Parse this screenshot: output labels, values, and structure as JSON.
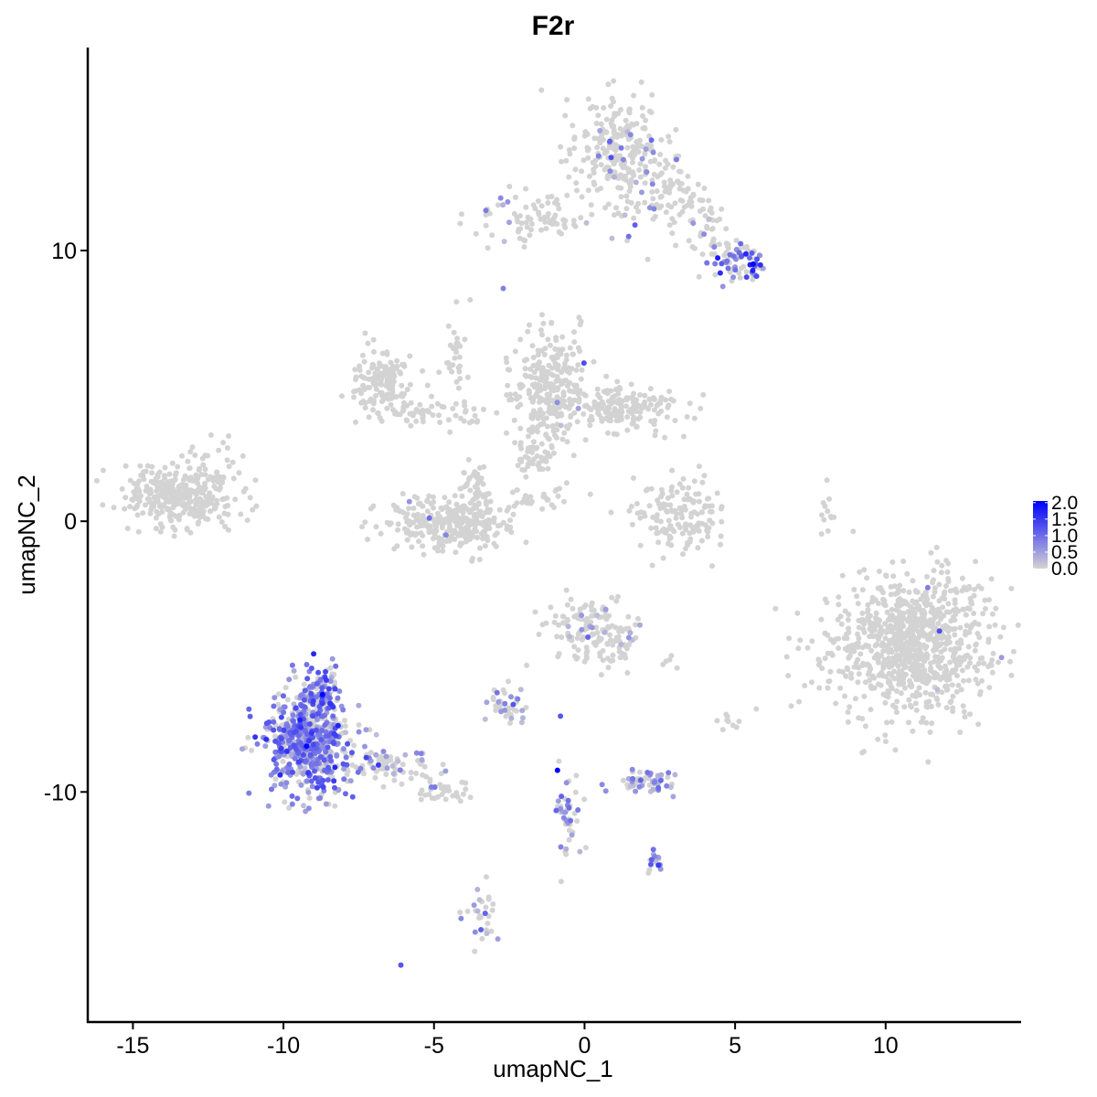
{
  "chart_data": {
    "type": "scatter",
    "title": "F2r",
    "xlabel": "umapNC_1",
    "ylabel": "umapNC_2",
    "xlim": [
      -16.5,
      14.5
    ],
    "ylim": [
      -18.5,
      17.5
    ],
    "x_ticks": [
      -15,
      -10,
      -5,
      0,
      5,
      10
    ],
    "x_tick_labels": [
      "-15",
      "-10",
      "-5",
      "0",
      "5",
      "10"
    ],
    "y_ticks": [
      -10,
      0,
      10
    ],
    "y_tick_labels": [
      "-10",
      "0",
      "10"
    ],
    "grid": false,
    "legend_position": "right",
    "color_scale": {
      "low": "#d3d3d3",
      "high": "#0000ff",
      "min": 0,
      "max": 2.05,
      "breaks": [
        2.0,
        1.5,
        1.0,
        0.5,
        0.0
      ],
      "break_labels": [
        "2.0",
        "1.5",
        "1.0",
        "0.5",
        "0.0"
      ]
    },
    "clusters": [
      {
        "cx": -13.4,
        "cy": 1.0,
        "sx": 0.9,
        "sy": 0.6,
        "n": 320,
        "expr_frac": 0.0,
        "expr_mean": 0.0
      },
      {
        "cx": -12.0,
        "cy": 1.8,
        "sx": 0.6,
        "sy": 0.5,
        "n": 25,
        "expr_frac": 0.0,
        "expr_mean": 0.0
      },
      {
        "cx": -6.8,
        "cy": 5.2,
        "sx": 0.5,
        "sy": 0.5,
        "n": 130,
        "expr_frac": 0.02,
        "expr_mean": 0.6
      },
      {
        "cx": -5.3,
        "cy": 4.0,
        "sx": 0.9,
        "sy": 0.3,
        "n": 70,
        "expr_frac": 0.02,
        "expr_mean": 0.5
      },
      {
        "cx": -4.3,
        "cy": 6.2,
        "sx": 0.2,
        "sy": 1.0,
        "n": 30,
        "expr_frac": 0.0,
        "expr_mean": 0.0
      },
      {
        "cx": -4.5,
        "cy": -0.1,
        "sx": 1.1,
        "sy": 0.5,
        "n": 300,
        "expr_frac": 0.01,
        "expr_mean": 0.5
      },
      {
        "cx": -3.6,
        "cy": 1.0,
        "sx": 0.35,
        "sy": 0.6,
        "n": 55,
        "expr_frac": 0.0,
        "expr_mean": 0.0
      },
      {
        "cx": -1.2,
        "cy": 5.0,
        "sx": 0.6,
        "sy": 1.0,
        "n": 260,
        "expr_frac": 0.02,
        "expr_mean": 0.5
      },
      {
        "cx": 1.2,
        "cy": 4.2,
        "sx": 1.0,
        "sy": 0.45,
        "n": 200,
        "expr_frac": 0.01,
        "expr_mean": 0.5
      },
      {
        "cx": -1.6,
        "cy": 2.5,
        "sx": 0.35,
        "sy": 0.6,
        "n": 50,
        "expr_frac": 0.0,
        "expr_mean": 0.0
      },
      {
        "cx": -1.8,
        "cy": 0.8,
        "sx": 0.7,
        "sy": 0.25,
        "n": 25,
        "expr_frac": 0.0,
        "expr_mean": 0.0
      },
      {
        "cx": 3.2,
        "cy": 0.2,
        "sx": 0.8,
        "sy": 0.7,
        "n": 150,
        "expr_frac": 0.0,
        "expr_mean": 0.0
      },
      {
        "cx": 8.1,
        "cy": 0.3,
        "sx": 0.15,
        "sy": 0.5,
        "n": 12,
        "expr_frac": 0.0,
        "expr_mean": 0.0
      },
      {
        "cx": 10.8,
        "cy": -4.6,
        "sx": 1.3,
        "sy": 1.3,
        "n": 900,
        "expr_frac": 0.005,
        "expr_mean": 0.5
      },
      {
        "cx": 1.2,
        "cy": 13.6,
        "sx": 0.8,
        "sy": 1.0,
        "n": 260,
        "expr_frac": 0.08,
        "expr_mean": 0.6
      },
      {
        "cx": 3.0,
        "cy": 11.8,
        "sx": 0.7,
        "sy": 0.8,
        "n": 80,
        "expr_frac": 0.05,
        "expr_mean": 0.5
      },
      {
        "cx": -1.8,
        "cy": 11.2,
        "sx": 1.0,
        "sy": 0.4,
        "n": 80,
        "expr_frac": 0.06,
        "expr_mean": 0.6
      },
      {
        "cx": 5.2,
        "cy": 9.6,
        "sx": 0.45,
        "sy": 0.35,
        "n": 80,
        "expr_frac": 0.45,
        "expr_mean": 1.0
      },
      {
        "cx": 4.3,
        "cy": 10.6,
        "sx": 0.4,
        "sy": 0.6,
        "n": 30,
        "expr_frac": 0.1,
        "expr_mean": 0.6
      },
      {
        "cx": -9.2,
        "cy": -8.2,
        "sx": 0.7,
        "sy": 0.9,
        "n": 560,
        "expr_frac": 0.7,
        "expr_mean": 0.85
      },
      {
        "cx": -8.8,
        "cy": -6.3,
        "sx": 0.35,
        "sy": 0.5,
        "n": 100,
        "expr_frac": 0.6,
        "expr_mean": 0.9
      },
      {
        "cx": -6.6,
        "cy": -9.0,
        "sx": 1.0,
        "sy": 0.3,
        "n": 80,
        "expr_frac": 0.25,
        "expr_mean": 0.6
      },
      {
        "cx": -4.7,
        "cy": -9.9,
        "sx": 0.5,
        "sy": 0.2,
        "n": 35,
        "expr_frac": 0.1,
        "expr_mean": 0.5
      },
      {
        "cx": 0.2,
        "cy": -4.0,
        "sx": 0.6,
        "sy": 0.6,
        "n": 130,
        "expr_frac": 0.08,
        "expr_mean": 0.5
      },
      {
        "cx": 1.2,
        "cy": -4.7,
        "sx": 0.3,
        "sy": 0.4,
        "n": 30,
        "expr_frac": 0.05,
        "expr_mean": 0.5
      },
      {
        "cx": -2.6,
        "cy": -6.8,
        "sx": 0.35,
        "sy": 0.3,
        "n": 40,
        "expr_frac": 0.35,
        "expr_mean": 0.6
      },
      {
        "cx": 2.1,
        "cy": -9.6,
        "sx": 0.5,
        "sy": 0.2,
        "n": 60,
        "expr_frac": 0.5,
        "expr_mean": 0.55
      },
      {
        "cx": -0.6,
        "cy": -10.8,
        "sx": 0.25,
        "sy": 0.8,
        "n": 45,
        "expr_frac": 0.45,
        "expr_mean": 0.6
      },
      {
        "cx": 2.3,
        "cy": -12.5,
        "sx": 0.15,
        "sy": 0.2,
        "n": 15,
        "expr_frac": 0.6,
        "expr_mean": 0.8
      },
      {
        "cx": -3.4,
        "cy": -14.5,
        "sx": 0.25,
        "sy": 0.5,
        "n": 30,
        "expr_frac": 0.3,
        "expr_mean": 0.6
      },
      {
        "cx": 4.9,
        "cy": -7.4,
        "sx": 0.3,
        "sy": 0.2,
        "n": 10,
        "expr_frac": 0.0,
        "expr_mean": 0.0
      },
      {
        "cx": 2.9,
        "cy": -5.2,
        "sx": 0.15,
        "sy": 0.15,
        "n": 5,
        "expr_frac": 0.0,
        "expr_mean": 0.0
      }
    ],
    "highlights": [
      {
        "x": -0.9,
        "y": -9.2,
        "value": 2.0
      },
      {
        "x": 5.6,
        "y": 9.5,
        "value": 2.0
      },
      {
        "x": -8.7,
        "y": -6.4,
        "value": 2.0
      },
      {
        "x": -6.1,
        "y": -16.4,
        "value": 1.2
      },
      {
        "x": -0.8,
        "y": -7.2,
        "value": 1.2
      },
      {
        "x": -2.7,
        "y": 8.6,
        "value": 0.8
      }
    ]
  }
}
